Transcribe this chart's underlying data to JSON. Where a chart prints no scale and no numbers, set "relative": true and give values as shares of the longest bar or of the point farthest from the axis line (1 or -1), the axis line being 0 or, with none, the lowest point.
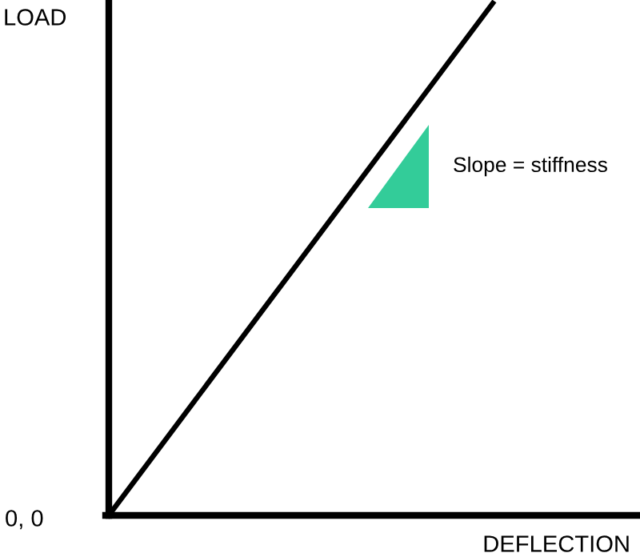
{
  "chart_data": {
    "type": "line",
    "relative": true,
    "xlabel": "DEFLECTION",
    "ylabel": "LOAD",
    "categories": [
      null,
      null
    ],
    "series": [
      {
        "color": "#000000",
        "values": [
          0,
          1
        ]
      }
    ],
    "annotations": [
      "Slope = stiffness",
      "0, 0"
    ],
    "marker": "none",
    "line_style": "solid"
  }
}
